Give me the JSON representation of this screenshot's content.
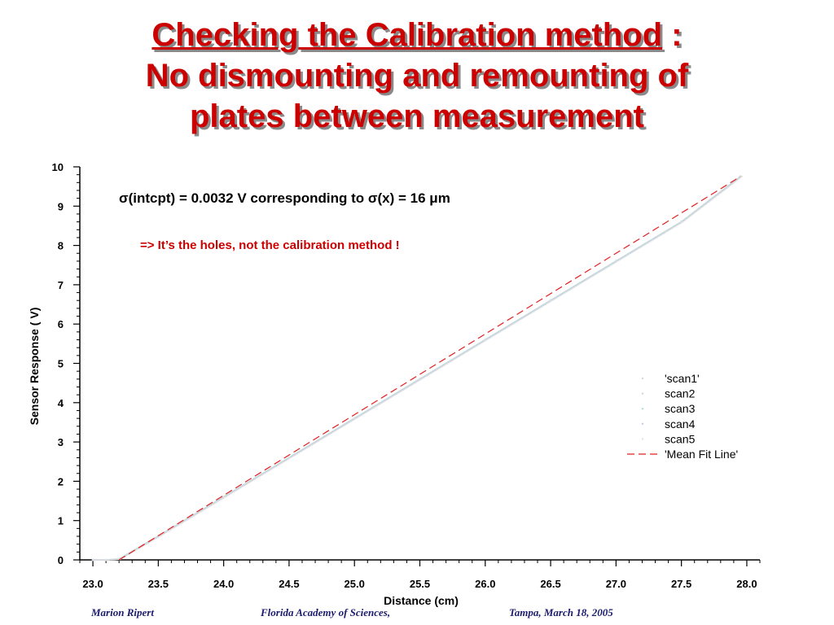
{
  "slide": {
    "title_line1_underlined": "Checking the Calibration method",
    "title_line1_suffix": " :",
    "title_line2": "No dismounting and remounting of",
    "title_line3": "plates between measurement"
  },
  "annotations": {
    "sigma_text": "σ(intcpt) = 0.0032 V  corresponding to  σ(x) = 16 μm",
    "conclusion_text": "=> It’s the holes, not the calibration method !",
    "conclusion_color": "#cc0000"
  },
  "footer": {
    "author": "Marion Ripert",
    "venue": "Florida Academy of Sciences,",
    "place_date": "Tampa, March 18, 2005"
  },
  "chart_data": {
    "type": "line",
    "xlabel": "Distance (cm)",
    "ylabel": "Sensor Response ( V)",
    "xlim": [
      22.9,
      28.1
    ],
    "ylim": [
      0,
      10
    ],
    "xticks": [
      "23.0",
      "23.5",
      "24.0",
      "24.5",
      "25.0",
      "25.5",
      "26.0",
      "26.5",
      "27.0",
      "27.5",
      "28.0"
    ],
    "yticks": [
      "0",
      "1",
      "2",
      "3",
      "4",
      "5",
      "6",
      "7",
      "8",
      "9",
      "10"
    ],
    "legend_position": "right",
    "series": [
      {
        "name": "'scan1'",
        "x": [
          23.0,
          23.1,
          23.2,
          23.5,
          24.0,
          24.5,
          25.0,
          25.5,
          26.0,
          26.5,
          27.0,
          27.5,
          27.95
        ],
        "y": [
          0.0,
          0.0,
          0.02,
          0.61,
          1.6,
          2.6,
          3.6,
          4.6,
          5.6,
          6.6,
          7.6,
          8.6,
          9.75
        ],
        "color": "#cfd8dc",
        "style": "dots"
      },
      {
        "name": "scan2",
        "x": [
          23.0,
          23.1,
          23.2,
          23.5,
          24.0,
          24.5,
          25.0,
          25.5,
          26.0,
          26.5,
          27.0,
          27.5,
          27.95
        ],
        "y": [
          0.0,
          0.0,
          0.02,
          0.6,
          1.59,
          2.59,
          3.59,
          4.59,
          5.59,
          6.59,
          7.59,
          8.6,
          9.74
        ],
        "color": "#d4d4d4",
        "style": "dots"
      },
      {
        "name": "scan3",
        "x": [
          23.0,
          23.1,
          23.2,
          23.5,
          24.0,
          24.5,
          25.0,
          25.5,
          26.0,
          26.5,
          27.0,
          27.5,
          27.95
        ],
        "y": [
          0.0,
          0.0,
          0.03,
          0.61,
          1.61,
          2.61,
          3.61,
          4.61,
          5.61,
          6.61,
          7.61,
          8.61,
          9.76
        ],
        "color": "#b2dfdb",
        "style": "dots"
      },
      {
        "name": "scan4",
        "x": [
          23.0,
          23.1,
          23.2,
          23.5,
          24.0,
          24.5,
          25.0,
          25.5,
          26.0,
          26.5,
          27.0,
          27.5,
          27.95
        ],
        "y": [
          0.0,
          0.0,
          0.02,
          0.6,
          1.6,
          2.6,
          3.6,
          4.6,
          5.6,
          6.6,
          7.6,
          8.6,
          9.75
        ],
        "color": "#c5cae9",
        "style": "dots"
      },
      {
        "name": "scan5",
        "x": [
          23.0,
          23.1,
          23.2,
          23.5,
          24.0,
          24.5,
          25.0,
          25.5,
          26.0,
          26.5,
          27.0,
          27.5,
          27.95
        ],
        "y": [
          0.0,
          0.0,
          0.02,
          0.61,
          1.6,
          2.6,
          3.6,
          4.6,
          5.6,
          6.6,
          7.6,
          8.6,
          9.75
        ],
        "color": "#e0e0e0",
        "style": "dots"
      },
      {
        "name": "'Mean Fit Line'",
        "x": [
          23.2,
          27.95
        ],
        "y": [
          0.0,
          9.75
        ],
        "color": "#e02020",
        "style": "dashed"
      }
    ]
  }
}
